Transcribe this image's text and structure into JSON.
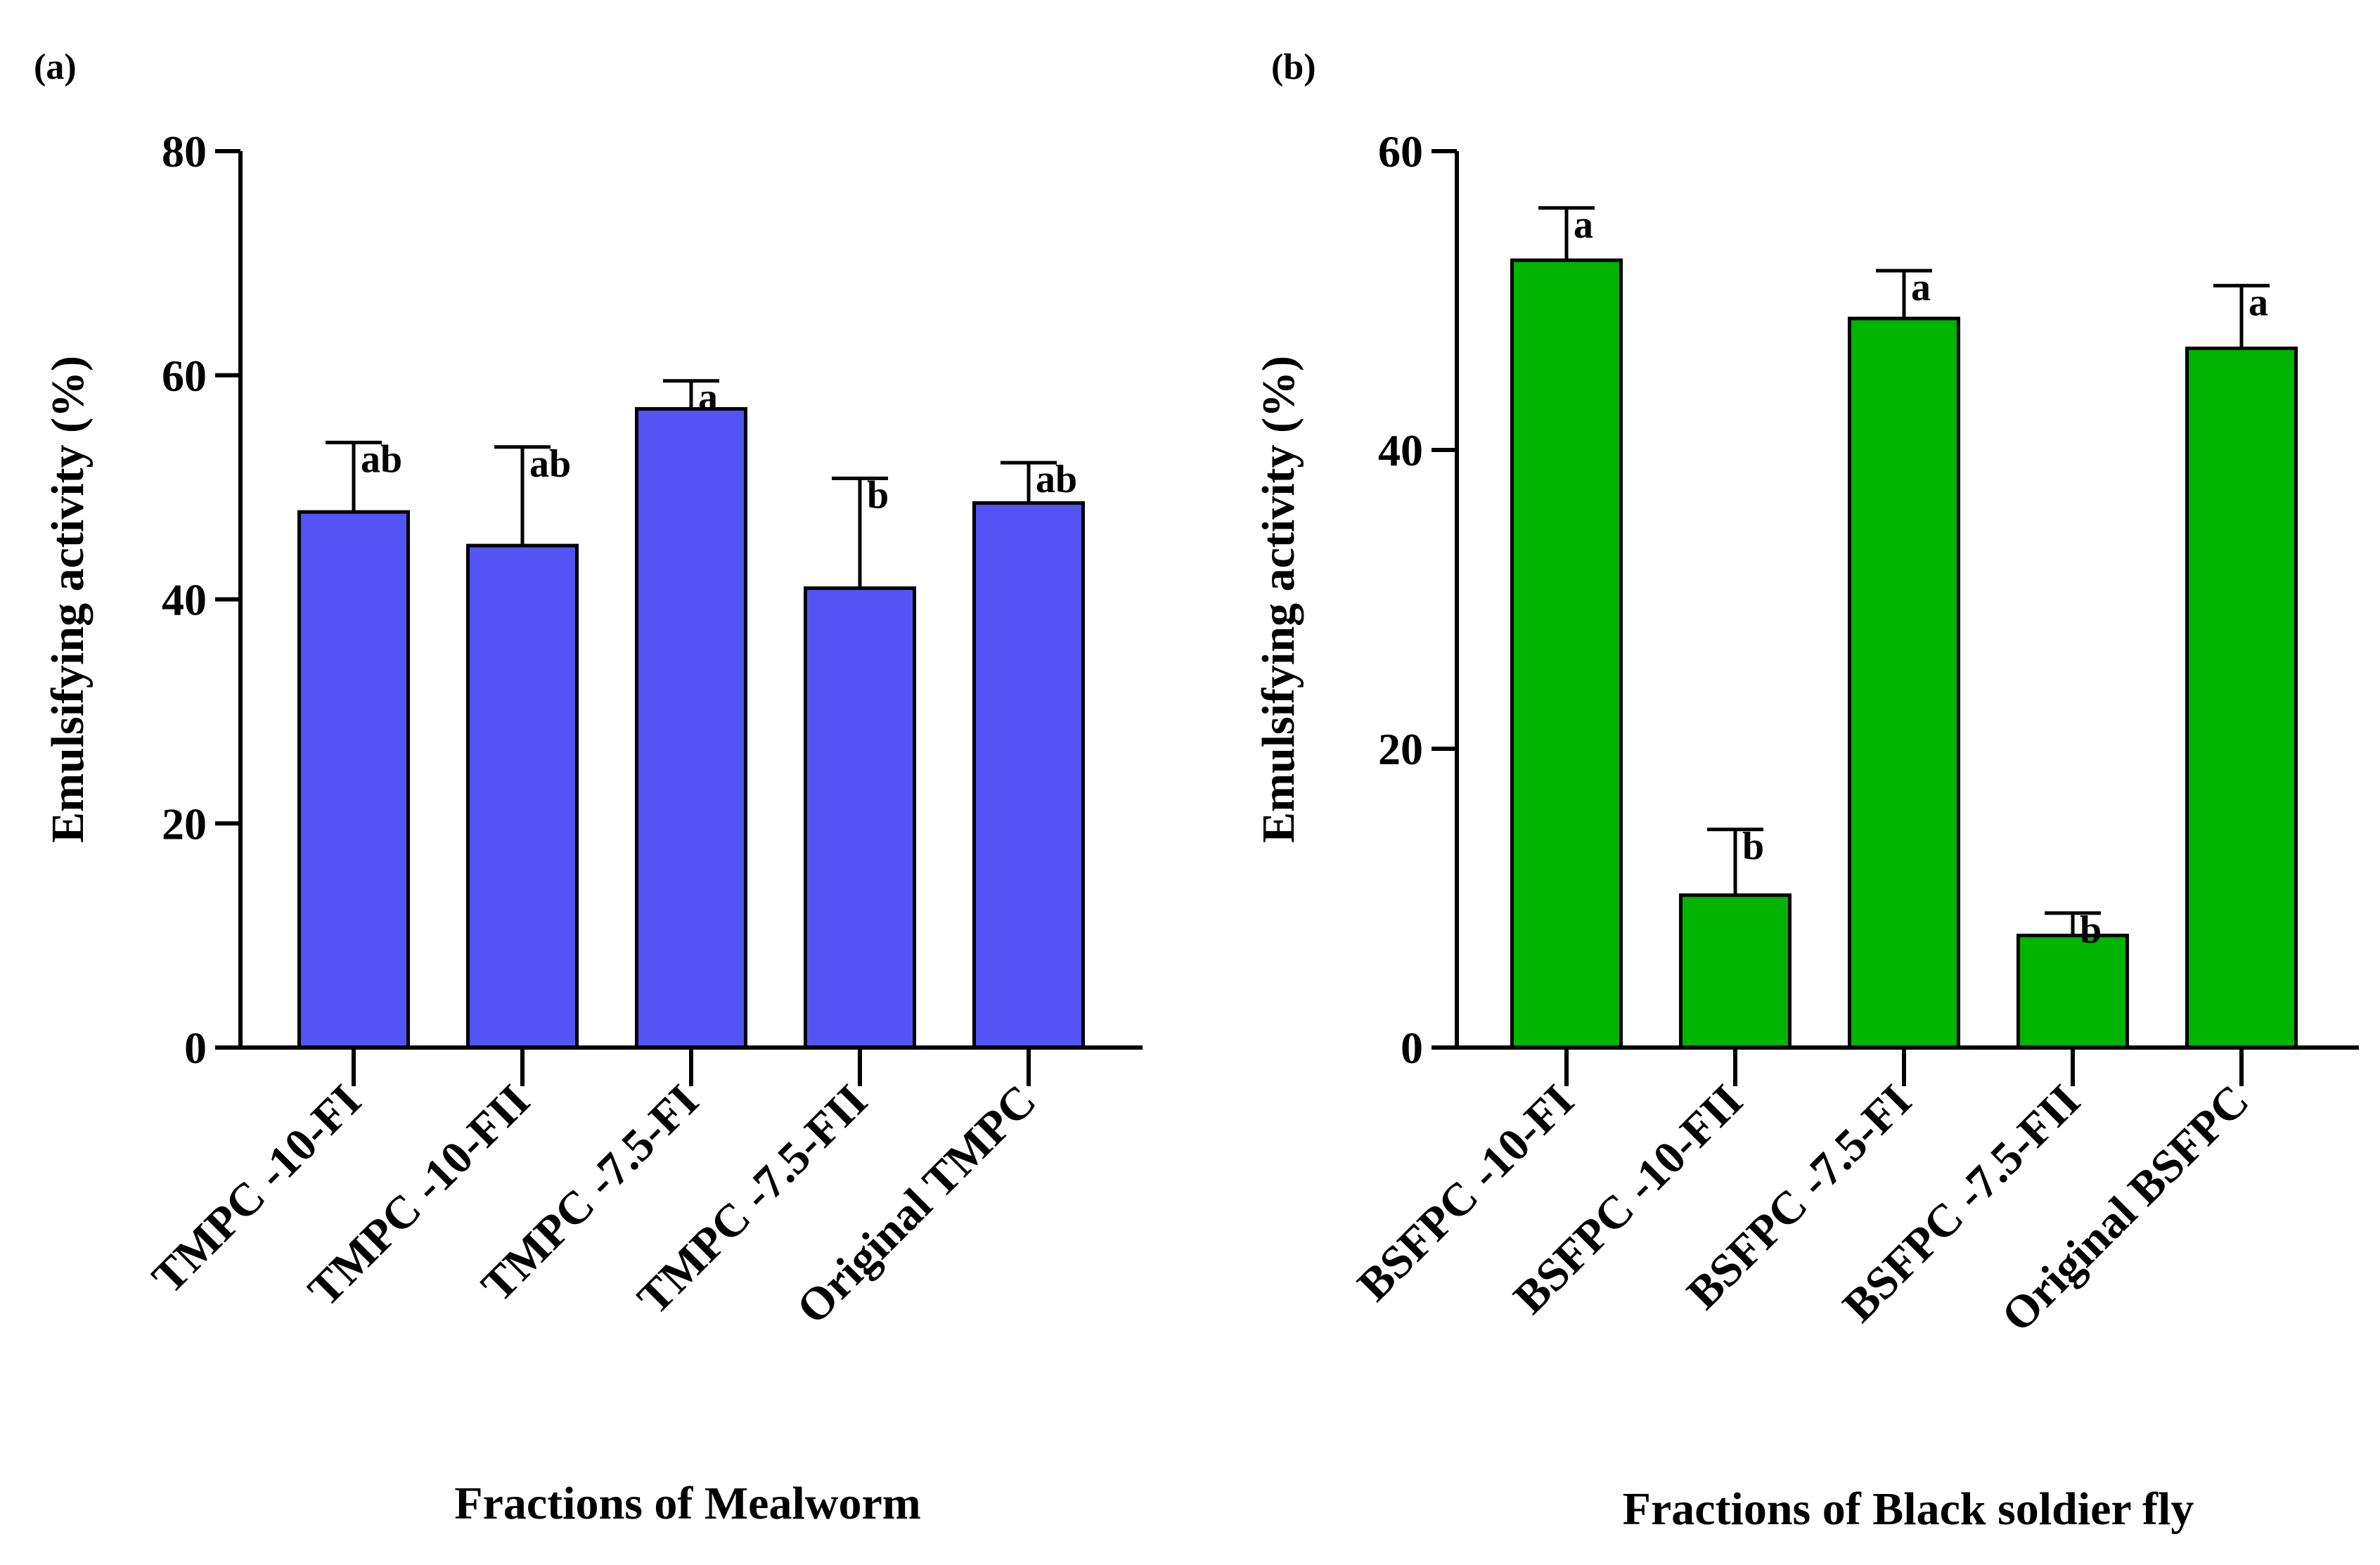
{
  "chart_data": [
    {
      "panel_label": "(a)",
      "type": "bar",
      "categories": [
        "TMPC -10-FI",
        "TMPC -10-FII",
        "TMPC -7.5-FI",
        "TMPC -7.5-FII",
        "Original TMPC"
      ],
      "values": [
        47.8,
        44.8,
        57.0,
        41.0,
        48.6
      ],
      "errors": [
        6.2,
        8.8,
        2.5,
        9.8,
        3.6
      ],
      "significance": [
        "ab",
        "ab",
        "a",
        "b",
        "ab"
      ],
      "xlabel": "Fractions of Mealworm",
      "ylabel": "Emulsifying activity (%)",
      "ylim": [
        0,
        80
      ],
      "yticks": [
        "0",
        "20",
        "40",
        "60",
        "80"
      ],
      "color": "#5454F5"
    },
    {
      "panel_label": "(b)",
      "type": "bar",
      "categories": [
        "BSFPC -10-FI",
        "BSFPC -10-FII",
        "BSFPC -7.5-FI",
        "BSFPC -7.5-FII",
        "Original BSFPC"
      ],
      "values": [
        52.7,
        10.2,
        48.8,
        7.5,
        46.8
      ],
      "errors": [
        3.5,
        4.4,
        3.2,
        1.5,
        4.2
      ],
      "significance": [
        "a",
        "b",
        "a",
        "b",
        "a"
      ],
      "xlabel": "Fractions of Black soldier fly",
      "ylabel": "Emulsifying activity (%)",
      "ylim": [
        0,
        60
      ],
      "yticks": [
        "0",
        "20",
        "40",
        "60"
      ],
      "color": "#00B400"
    }
  ]
}
